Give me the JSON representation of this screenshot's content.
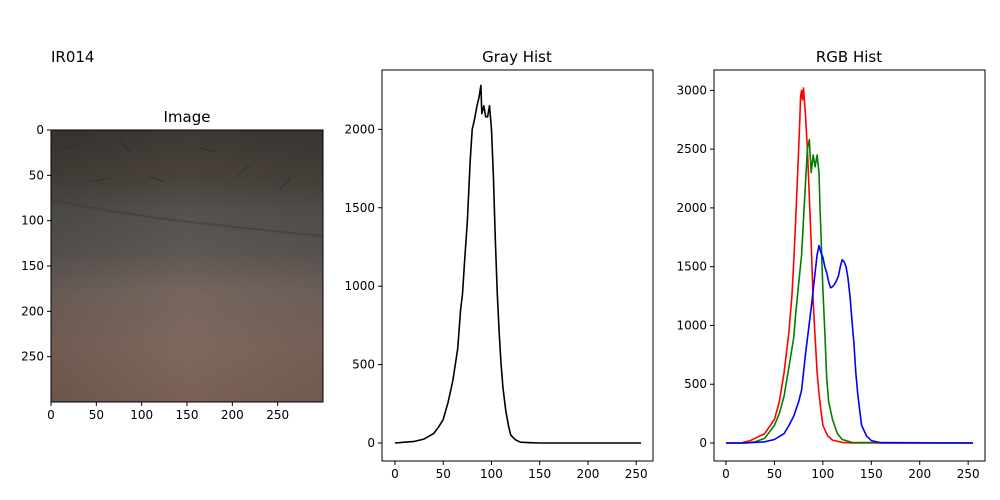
{
  "figure": {
    "suptitle": "IR014"
  },
  "chart_data": [
    {
      "type": "image",
      "title": "Image",
      "xticks": [
        0,
        50,
        100,
        150,
        200,
        250
      ],
      "yticks": [
        0,
        50,
        100,
        150,
        200,
        250
      ],
      "xlim": [
        0,
        300
      ],
      "ylim": [
        300,
        0
      ]
    },
    {
      "type": "line",
      "title": "Gray Hist",
      "xlim": [
        0,
        255
      ],
      "ylim": [
        0,
        2270
      ],
      "xticks": [
        0,
        50,
        100,
        150,
        200,
        250
      ],
      "yticks": [
        0,
        500,
        1000,
        1500,
        2000
      ],
      "series": [
        {
          "color": "#000000",
          "x": [
            0,
            10,
            20,
            30,
            40,
            45,
            50,
            55,
            60,
            65,
            68,
            70,
            72,
            75,
            78,
            80,
            82,
            85,
            87,
            89,
            90,
            92,
            94,
            96,
            98,
            100,
            102,
            104,
            106,
            108,
            110,
            112,
            115,
            118,
            120,
            125,
            130,
            140,
            150,
            255
          ],
          "y": [
            0,
            5,
            10,
            25,
            60,
            100,
            150,
            260,
            400,
            600,
            850,
            950,
            1150,
            1420,
            1800,
            2000,
            2050,
            2150,
            2200,
            2280,
            2100,
            2150,
            2080,
            2080,
            2150,
            2000,
            1700,
            1300,
            950,
            700,
            500,
            350,
            200,
            100,
            50,
            20,
            5,
            2,
            0,
            0
          ]
        }
      ]
    },
    {
      "type": "line",
      "title": "RGB Hist",
      "xlim": [
        0,
        255
      ],
      "ylim": [
        0,
        3020
      ],
      "xticks": [
        0,
        50,
        100,
        150,
        200,
        250
      ],
      "yticks": [
        0,
        500,
        1000,
        1500,
        2000,
        2500,
        3000
      ],
      "series": [
        {
          "color": "#ff0000",
          "x": [
            0,
            15,
            25,
            30,
            40,
            45,
            50,
            55,
            60,
            65,
            68,
            70,
            72,
            74,
            76,
            77,
            78,
            79,
            80,
            82,
            84,
            86,
            88,
            90,
            92,
            94,
            96,
            98,
            100,
            105,
            110,
            120,
            130,
            255
          ],
          "y": [
            0,
            0,
            20,
            40,
            80,
            140,
            200,
            350,
            600,
            950,
            1250,
            1550,
            1900,
            2300,
            2700,
            2950,
            3000,
            2920,
            3020,
            2800,
            2500,
            2100,
            1700,
            1200,
            900,
            600,
            420,
            280,
            150,
            60,
            25,
            5,
            0,
            0
          ]
        },
        {
          "color": "#008000",
          "x": [
            0,
            20,
            30,
            40,
            50,
            55,
            60,
            65,
            70,
            72,
            75,
            78,
            80,
            82,
            84,
            86,
            88,
            90,
            92,
            94,
            96,
            97,
            98,
            100,
            102,
            104,
            106,
            110,
            115,
            120,
            130,
            255
          ],
          "y": [
            0,
            0,
            10,
            40,
            150,
            250,
            400,
            650,
            900,
            1100,
            1350,
            1600,
            1900,
            2200,
            2500,
            2580,
            2300,
            2450,
            2350,
            2450,
            2300,
            2000,
            1800,
            1300,
            950,
            550,
            350,
            200,
            80,
            30,
            5,
            0
          ]
        },
        {
          "color": "#0000ff",
          "x": [
            0,
            20,
            40,
            50,
            60,
            65,
            70,
            75,
            78,
            80,
            82,
            85,
            88,
            90,
            92,
            94,
            96,
            98,
            100,
            102,
            104,
            106,
            108,
            110,
            112,
            114,
            116,
            118,
            120,
            122,
            124,
            126,
            128,
            130,
            132,
            134,
            136,
            138,
            140,
            145,
            150,
            160,
            255
          ],
          "y": [
            0,
            0,
            10,
            30,
            80,
            150,
            230,
            350,
            450,
            600,
            750,
            950,
            1150,
            1300,
            1450,
            1600,
            1680,
            1620,
            1580,
            1500,
            1450,
            1370,
            1320,
            1330,
            1350,
            1380,
            1420,
            1500,
            1560,
            1540,
            1500,
            1400,
            1250,
            1050,
            850,
            600,
            420,
            280,
            150,
            60,
            20,
            2,
            0
          ]
        }
      ]
    }
  ]
}
